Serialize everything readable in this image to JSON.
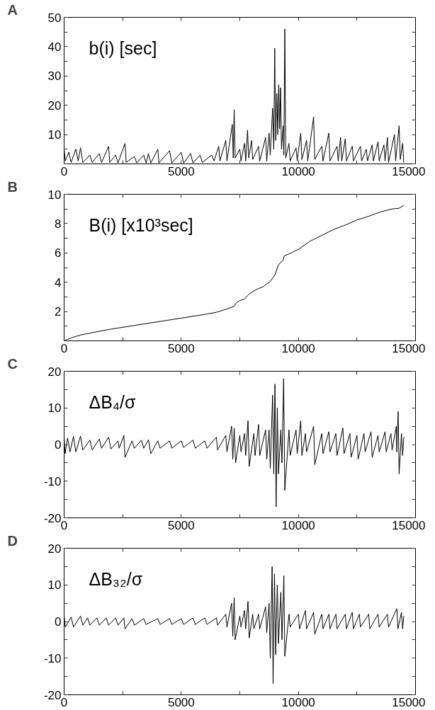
{
  "chart_data": [
    {
      "type": "line",
      "title": "A",
      "annotations": [
        "b(i) [sec]"
      ],
      "grid": false,
      "xlim": [
        0,
        15000
      ],
      "ylim": [
        0,
        50
      ],
      "xticks": [
        0,
        {
          "value": 2500,
          "label": null
        },
        5000,
        {
          "value": 7500,
          "label": null
        },
        10000,
        {
          "value": 12500,
          "label": null
        },
        15000
      ],
      "yticks": [
        {
          "value": 0,
          "label": null
        },
        {
          "value": 5,
          "label": null
        },
        10,
        {
          "value": 15,
          "label": null
        },
        20,
        {
          "value": 25,
          "label": null
        },
        30,
        {
          "value": 35,
          "label": null
        },
        40,
        {
          "value": 45,
          "label": null
        },
        50
      ],
      "x": [
        0,
        50,
        200,
        300,
        500,
        600,
        700,
        800,
        1100,
        1200,
        1500,
        1600,
        1900,
        1950,
        2200,
        2300,
        2600,
        2650,
        3000,
        3100,
        3400,
        3500,
        3600,
        3700,
        4000,
        4050,
        4500,
        4600,
        5000,
        5100,
        5400,
        5500,
        5800,
        5900,
        6300,
        6400,
        6600,
        6650,
        6900,
        6950,
        7180,
        7220,
        7260,
        7300,
        7500,
        7550,
        7700,
        7750,
        7830,
        7880,
        8000,
        8050,
        8300,
        8350,
        8600,
        8650,
        8750,
        8800,
        8900,
        8950,
        8990,
        9030,
        9080,
        9120,
        9160,
        9200,
        9240,
        9280,
        9350,
        9380,
        9420,
        9460,
        9600,
        9650,
        9900,
        9950,
        10100,
        10150,
        10350,
        10400,
        10650,
        10700,
        11000,
        11050,
        11300,
        11350,
        11650,
        11700,
        11800,
        11850,
        12000,
        12050,
        12300,
        12350,
        12650,
        12700,
        12900,
        12950,
        13150,
        13200,
        13400,
        13450,
        13650,
        13700,
        13800,
        13850,
        14100,
        14150,
        14300,
        14350,
        14450,
        14500
      ],
      "series": [
        {
          "color": "#000000",
          "values": [
            5,
            1,
            4,
            0.5,
            5,
            1,
            5.5,
            0.5,
            3,
            0.5,
            3.5,
            0.5,
            6,
            0.5,
            3,
            0.3,
            7,
            0.5,
            2.5,
            0.3,
            3,
            0.3,
            3.5,
            0.3,
            5,
            0.3,
            4.5,
            0.3,
            4,
            0.3,
            3.5,
            0.3,
            3,
            0.5,
            3,
            1,
            6,
            1,
            8,
            1,
            13.5,
            2,
            18.5,
            2,
            5,
            1,
            7,
            1,
            11.5,
            2,
            8,
            1.5,
            6,
            1,
            9,
            1,
            10.5,
            3,
            19,
            5,
            39.5,
            8,
            24,
            10,
            27,
            12,
            26,
            5,
            13,
            3,
            46,
            2,
            7,
            1,
            5.5,
            1,
            10.5,
            1.5,
            8,
            1,
            16,
            1.5,
            6,
            1,
            10.5,
            1,
            6,
            1,
            9,
            1,
            8.5,
            1,
            6,
            1,
            6,
            1,
            5,
            1,
            6.5,
            1,
            7.5,
            1,
            6.5,
            1,
            9,
            0.5,
            10,
            1,
            13,
            1.5,
            7,
            0.5
          ]
        }
      ]
    },
    {
      "type": "line",
      "title": "B",
      "annotations": [
        "B(i) [x10³sec]"
      ],
      "grid": false,
      "xlim": [
        0,
        15000
      ],
      "ylim": [
        0,
        10
      ],
      "xticks": [
        0,
        {
          "value": 2500,
          "label": null
        },
        5000,
        {
          "value": 7500,
          "label": null
        },
        10000,
        {
          "value": 12500,
          "label": null
        },
        15000
      ],
      "yticks": [
        {
          "value": 0,
          "label": null
        },
        {
          "value": 1,
          "label": null
        },
        2,
        {
          "value": 3,
          "label": null
        },
        4,
        {
          "value": 5,
          "label": null
        },
        6,
        {
          "value": 7,
          "label": null
        },
        8,
        {
          "value": 9,
          "label": null
        },
        10
      ],
      "x": [
        0,
        300,
        700,
        1500,
        2000,
        3000,
        4000,
        5000,
        6000,
        6500,
        7000,
        7250,
        7350,
        7500,
        7700,
        7900,
        8200,
        8500,
        8800,
        9000,
        9150,
        9350,
        9400,
        9700,
        10000,
        10500,
        11000,
        11500,
        12000,
        12500,
        13000,
        13500,
        14000,
        14300,
        14500
      ],
      "series": [
        {
          "color": "#000000",
          "values": [
            0,
            0.2,
            0.4,
            0.65,
            0.8,
            1.05,
            1.3,
            1.55,
            1.8,
            1.95,
            2.2,
            2.35,
            2.6,
            2.75,
            2.85,
            3.2,
            3.5,
            3.7,
            4.05,
            4.5,
            5.2,
            5.5,
            5.8,
            6.0,
            6.25,
            6.8,
            7.2,
            7.6,
            7.9,
            8.25,
            8.5,
            8.8,
            9.0,
            9.05,
            9.25
          ]
        }
      ]
    },
    {
      "type": "line",
      "title": "C",
      "annotations": [
        "ΔB₄/σ"
      ],
      "grid": false,
      "xlim": [
        0,
        15000
      ],
      "ylim": [
        -20,
        20
      ],
      "xticks": [
        0,
        {
          "value": 2500,
          "label": null
        },
        5000,
        {
          "value": 7500,
          "label": null
        },
        10000,
        {
          "value": 12500,
          "label": null
        },
        15000
      ],
      "yticks": [
        -20,
        {
          "value": -15,
          "label": null
        },
        -10,
        {
          "value": -5,
          "label": null
        },
        0,
        {
          "value": 5,
          "label": null
        },
        10,
        {
          "value": 15,
          "label": null
        },
        20
      ],
      "x": [
        0,
        40,
        150,
        250,
        400,
        500,
        700,
        800,
        1100,
        1200,
        1500,
        1600,
        1900,
        2000,
        2300,
        2350,
        2550,
        2600,
        2900,
        3000,
        3300,
        3400,
        3600,
        3700,
        4000,
        4100,
        4500,
        4600,
        5000,
        5100,
        5500,
        5600,
        6000,
        6100,
        6500,
        6550,
        6900,
        6950,
        7150,
        7200,
        7260,
        7320,
        7500,
        7550,
        7700,
        7750,
        7850,
        7900,
        8100,
        8150,
        8300,
        8350,
        8600,
        8650,
        8750,
        8800,
        8900,
        8950,
        9000,
        9050,
        9100,
        9150,
        9250,
        9300,
        9370,
        9420,
        9600,
        9650,
        9900,
        9950,
        10100,
        10150,
        10300,
        10350,
        10650,
        10700,
        11000,
        11050,
        11300,
        11350,
        11600,
        11650,
        11900,
        11950,
        12200,
        12250,
        12500,
        12550,
        12800,
        12850,
        13100,
        13150,
        13400,
        13450,
        13700,
        13750,
        13950,
        14000,
        14180,
        14200,
        14260,
        14300,
        14400,
        14450,
        14500
      ],
      "series": [
        {
          "color": "#000000",
          "values": [
            2,
            -2.5,
            1.8,
            -2,
            2.2,
            -2,
            2.3,
            -1.5,
            1.2,
            -1.5,
            1.5,
            -1,
            2,
            -1.2,
            1,
            -1,
            2.5,
            -3.5,
            1,
            -1,
            1.2,
            -1,
            1.3,
            -2.5,
            1,
            -1,
            1,
            -1,
            1,
            -0.8,
            1.2,
            -1,
            1,
            -1,
            2,
            -1.5,
            2.5,
            -2,
            5,
            -4,
            4.5,
            -5,
            2.5,
            -2,
            3,
            -3,
            6.5,
            -6,
            3,
            -3,
            5.5,
            -3,
            4,
            -4,
            4,
            -6.5,
            13.5,
            -8,
            16.5,
            -17,
            10,
            -8,
            4,
            -5,
            18,
            -12.5,
            4,
            -3,
            4,
            -2.5,
            6.5,
            -3,
            3,
            -2,
            5,
            -5.5,
            3,
            -2.5,
            3.5,
            -2,
            3,
            -3,
            4.5,
            -2.5,
            3,
            -3.5,
            2.5,
            -4,
            3,
            -2,
            3.5,
            -3.5,
            2.5,
            -2,
            3.5,
            -2,
            3,
            -1.5,
            5,
            -2,
            9,
            -8,
            3,
            -3,
            2
          ]
        }
      ]
    },
    {
      "type": "line",
      "title": "D",
      "annotations": [
        "ΔB₃₂/σ"
      ],
      "grid": false,
      "xlim": [
        0,
        15000
      ],
      "ylim": [
        -20,
        20
      ],
      "xticks": [
        0,
        {
          "value": 2500,
          "label": null
        },
        5000,
        {
          "value": 7500,
          "label": null
        },
        10000,
        {
          "value": 12500,
          "label": null
        },
        15000
      ],
      "yticks": [
        -20,
        {
          "value": -15,
          "label": null
        },
        -10,
        {
          "value": -5,
          "label": null
        },
        0,
        {
          "value": 5,
          "label": null
        },
        10,
        {
          "value": 15,
          "label": null
        },
        20
      ],
      "x": [
        0,
        50,
        300,
        400,
        700,
        800,
        1000,
        1100,
        1400,
        1500,
        1800,
        1900,
        2200,
        2300,
        2550,
        2600,
        2900,
        3000,
        3400,
        3500,
        4000,
        4100,
        4500,
        4600,
        5000,
        5100,
        5500,
        5600,
        6000,
        6100,
        6500,
        6550,
        6900,
        6950,
        7150,
        7200,
        7260,
        7300,
        7500,
        7550,
        7700,
        7750,
        7850,
        7900,
        8050,
        8100,
        8300,
        8350,
        8600,
        8650,
        8750,
        8800,
        8880,
        8920,
        8980,
        9030,
        9100,
        9150,
        9250,
        9300,
        9380,
        9420,
        9600,
        9650,
        10000,
        10050,
        10300,
        10350,
        10650,
        10700,
        11000,
        11050,
        11300,
        11350,
        11600,
        11650,
        12000,
        12050,
        12300,
        12350,
        12600,
        12650,
        13000,
        13050,
        13400,
        13450,
        13800,
        13850,
        14200,
        14250,
        14400,
        14450,
        14500
      ],
      "series": [
        {
          "color": "#000000",
          "values": [
            1.5,
            -1.5,
            1.2,
            -1.5,
            1.5,
            -1,
            1,
            -1,
            1,
            -1,
            1,
            -1,
            1,
            -1,
            1,
            -2,
            0.8,
            -1,
            0.8,
            -0.8,
            0.8,
            -0.8,
            0.8,
            -0.8,
            0.8,
            -0.8,
            1,
            -0.8,
            1,
            -0.8,
            1,
            -1,
            2,
            -1.5,
            5,
            -4,
            6.5,
            -5,
            1.5,
            -1.5,
            3,
            -2,
            5.5,
            -4.5,
            2,
            -2,
            2,
            -2,
            4,
            -3,
            5,
            -10,
            15,
            -17,
            13,
            -9,
            10,
            -6,
            8,
            -5,
            12.5,
            -9.5,
            2,
            -1.5,
            2,
            -2,
            3,
            -2,
            2.5,
            -3.5,
            2,
            -2,
            2,
            -2,
            2,
            -2,
            2,
            -2,
            2.5,
            -2,
            2,
            -1.5,
            2,
            -2,
            2,
            -1.5,
            2,
            -1.5,
            3.5,
            -2,
            2.5,
            -2,
            1.5
          ]
        }
      ]
    }
  ]
}
